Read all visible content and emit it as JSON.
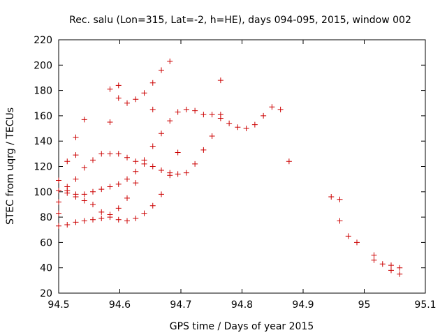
{
  "chart_data": {
    "type": "scatter",
    "title": "Rec. salu (Lon=315, Lat=-2, h=HE), days 094-095, 2015, window 002",
    "xlabel": "GPS time / Days of year 2015",
    "ylabel": "STEC from uqrg / TECUs",
    "xlim": [
      94.5,
      95.1
    ],
    "ylim": [
      20,
      220
    ],
    "xticks": [
      94.5,
      94.6,
      94.7,
      94.8,
      94.9,
      95,
      95.1
    ],
    "xtick_labels": [
      "94.5",
      "94.6",
      "94.7",
      "94.8",
      "94.9",
      "95",
      "95.1"
    ],
    "yticks": [
      20,
      40,
      60,
      80,
      100,
      120,
      140,
      160,
      180,
      200,
      220
    ],
    "ytick_labels": [
      "20",
      "40",
      "60",
      "80",
      "100",
      "120",
      "140",
      "160",
      "180",
      "200",
      "220"
    ],
    "grid": false,
    "marker": "+",
    "color": "#cc0000",
    "series": [
      {
        "name": "STEC",
        "points": [
          [
            94.5,
            109
          ],
          [
            94.5,
            101
          ],
          [
            94.5,
            92
          ],
          [
            94.5,
            83
          ],
          [
            94.5,
            73
          ],
          [
            94.514,
            124
          ],
          [
            94.514,
            104
          ],
          [
            94.514,
            101
          ],
          [
            94.514,
            99
          ],
          [
            94.514,
            74
          ],
          [
            94.528,
            143
          ],
          [
            94.528,
            129
          ],
          [
            94.528,
            110
          ],
          [
            94.528,
            98
          ],
          [
            94.528,
            96
          ],
          [
            94.528,
            76
          ],
          [
            94.542,
            157
          ],
          [
            94.542,
            119
          ],
          [
            94.542,
            98
          ],
          [
            94.542,
            93
          ],
          [
            94.542,
            77
          ],
          [
            94.556,
            125
          ],
          [
            94.556,
            100
          ],
          [
            94.556,
            90
          ],
          [
            94.556,
            78
          ],
          [
            94.57,
            130
          ],
          [
            94.57,
            102
          ],
          [
            94.57,
            84
          ],
          [
            94.57,
            79
          ],
          [
            94.584,
            181
          ],
          [
            94.584,
            155
          ],
          [
            94.584,
            130
          ],
          [
            94.584,
            104
          ],
          [
            94.584,
            82
          ],
          [
            94.584,
            80
          ],
          [
            94.598,
            184
          ],
          [
            94.598,
            174
          ],
          [
            94.598,
            130
          ],
          [
            94.598,
            106
          ],
          [
            94.598,
            87
          ],
          [
            94.598,
            78
          ],
          [
            94.612,
            170
          ],
          [
            94.612,
            127
          ],
          [
            94.612,
            110
          ],
          [
            94.612,
            95
          ],
          [
            94.612,
            77
          ],
          [
            94.626,
            173
          ],
          [
            94.626,
            124
          ],
          [
            94.626,
            116
          ],
          [
            94.626,
            107
          ],
          [
            94.626,
            79
          ],
          [
            94.64,
            178
          ],
          [
            94.64,
            125
          ],
          [
            94.64,
            122
          ],
          [
            94.64,
            83
          ],
          [
            94.654,
            186
          ],
          [
            94.654,
            165
          ],
          [
            94.654,
            136
          ],
          [
            94.654,
            120
          ],
          [
            94.654,
            89
          ],
          [
            94.668,
            196
          ],
          [
            94.668,
            146
          ],
          [
            94.668,
            117
          ],
          [
            94.668,
            98
          ],
          [
            94.682,
            203
          ],
          [
            94.682,
            156
          ],
          [
            94.682,
            115
          ],
          [
            94.682,
            113
          ],
          [
            94.695,
            163
          ],
          [
            94.695,
            131
          ],
          [
            94.695,
            114
          ],
          [
            94.709,
            165
          ],
          [
            94.709,
            115
          ],
          [
            94.723,
            164
          ],
          [
            94.723,
            122
          ],
          [
            94.737,
            161
          ],
          [
            94.737,
            133
          ],
          [
            94.751,
            161
          ],
          [
            94.751,
            144
          ],
          [
            94.765,
            188
          ],
          [
            94.765,
            161
          ],
          [
            94.765,
            158
          ],
          [
            94.779,
            154
          ],
          [
            94.793,
            151
          ],
          [
            94.807,
            150
          ],
          [
            94.821,
            153
          ],
          [
            94.835,
            160
          ],
          [
            94.849,
            167
          ],
          [
            94.863,
            165
          ],
          [
            94.877,
            124
          ],
          [
            94.946,
            96
          ],
          [
            94.96,
            94
          ],
          [
            94.96,
            77
          ],
          [
            94.974,
            65
          ],
          [
            94.988,
            60
          ],
          [
            95.016,
            50
          ],
          [
            95.016,
            46
          ],
          [
            95.03,
            43
          ],
          [
            95.044,
            42
          ],
          [
            95.044,
            38
          ],
          [
            95.058,
            40
          ],
          [
            95.058,
            35
          ]
        ]
      }
    ]
  }
}
